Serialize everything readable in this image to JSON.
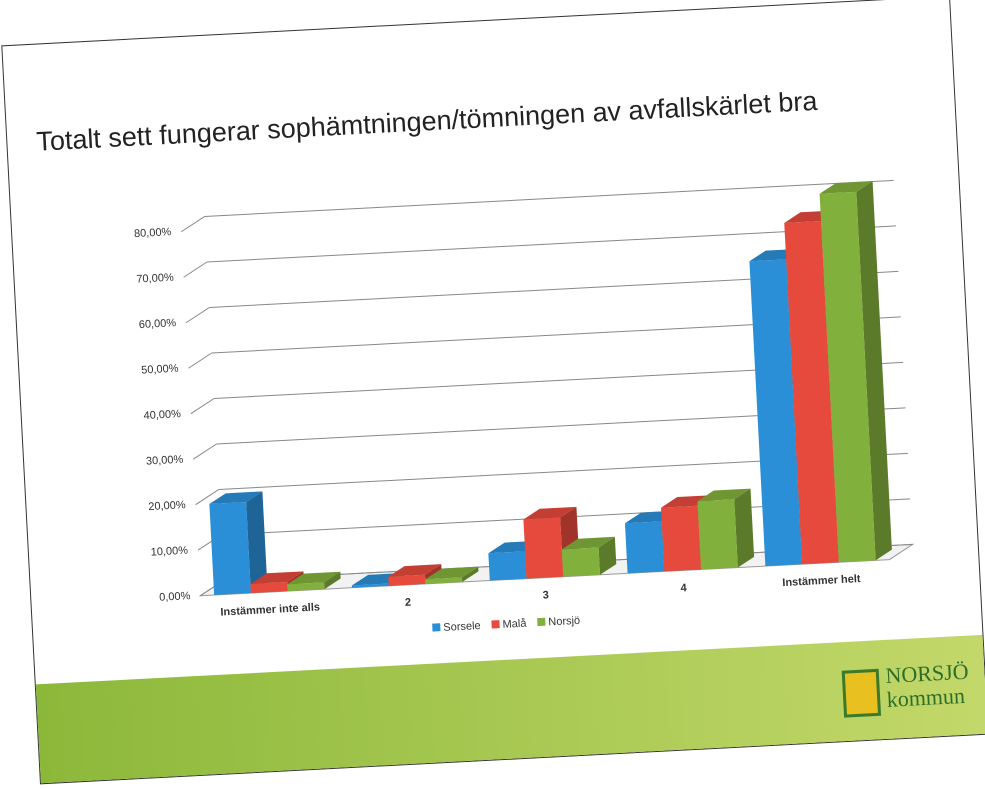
{
  "chart_data": {
    "type": "bar3d",
    "title": "Totalt sett fungerar sophämtningen/tömningen av avfallskärlet bra",
    "categories": [
      "Instämmer inte alls",
      "2",
      "3",
      "4",
      "Instämmer helt"
    ],
    "series": [
      {
        "name": "Sorsele",
        "color": "#2b8fd8",
        "values": [
          20,
          0.5,
          6,
          11,
          67
        ]
      },
      {
        "name": "Malå",
        "color": "#e54a3c",
        "values": [
          2,
          2,
          13,
          14,
          75
        ]
      },
      {
        "name": "Norsjö",
        "color": "#82b03c",
        "values": [
          1.5,
          1,
          6,
          15,
          81
        ]
      }
    ],
    "ylim": [
      0,
      90
    ],
    "yticks": [
      {
        "value": 0,
        "label": "0,00%"
      },
      {
        "value": 10,
        "label": "10,00%"
      },
      {
        "value": 20,
        "label": "20,00%"
      },
      {
        "value": 30,
        "label": "30,00%"
      },
      {
        "value": 40,
        "label": "40,00%"
      },
      {
        "value": 50,
        "label": "50,00%"
      },
      {
        "value": 60,
        "label": "60,00%"
      },
      {
        "value": 70,
        "label": "70,00%"
      },
      {
        "value": 80,
        "label": "80,00%"
      }
    ],
    "grid": true,
    "legend": "bottom",
    "logo": {
      "line1": "NORSJÖ",
      "line2": "kommun"
    }
  }
}
